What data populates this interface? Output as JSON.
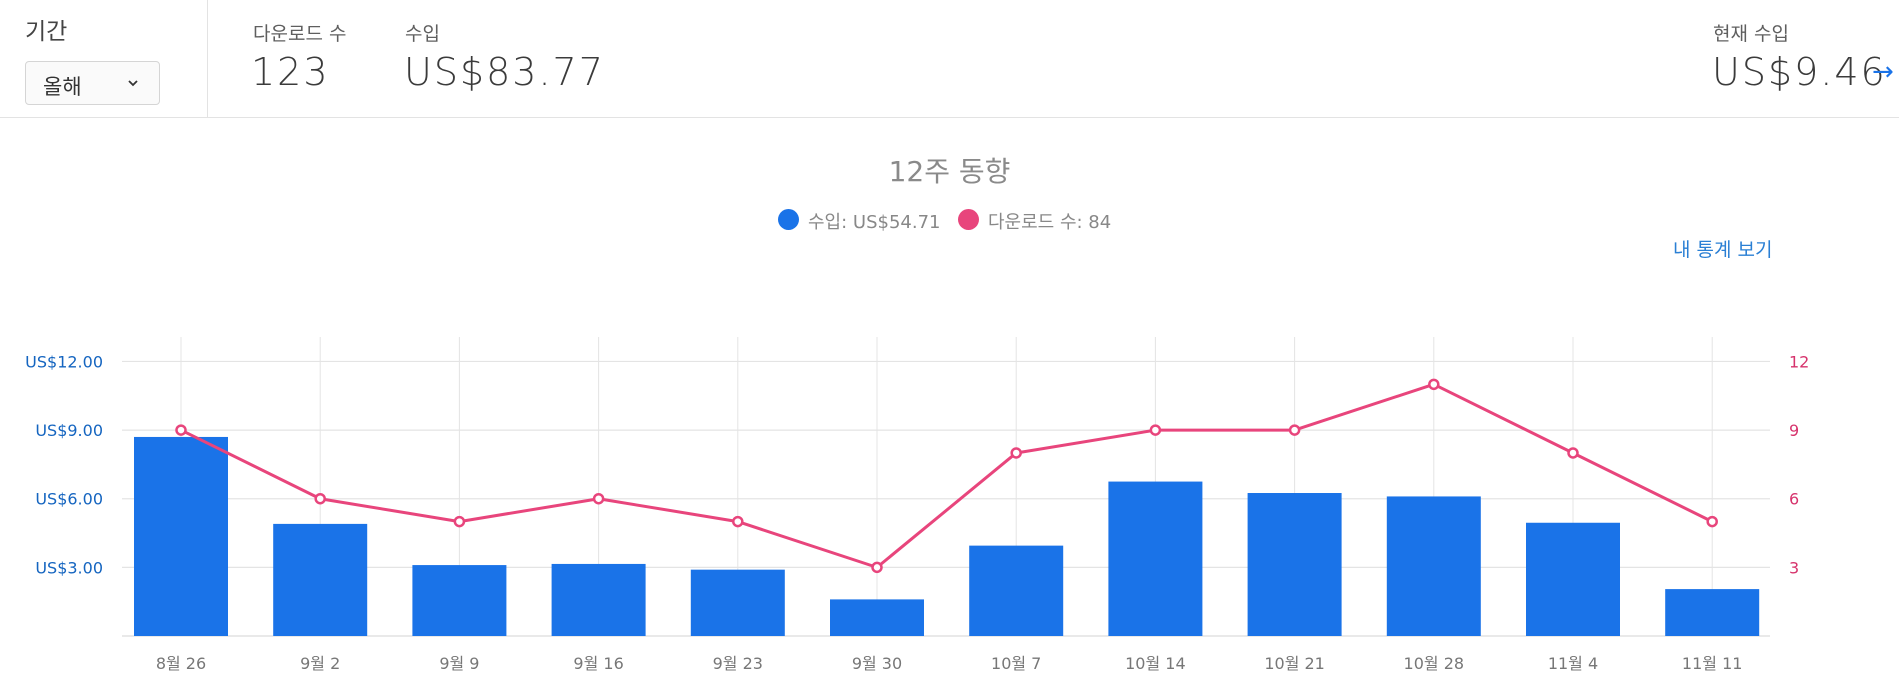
{
  "header": {
    "period_label": "기간",
    "period_value": "올해",
    "downloads_label": "다운로드 수",
    "downloads_value": "123",
    "revenue_label": "수입",
    "revenue_value": "US$83.77",
    "current_revenue_label": "현재 수입",
    "current_revenue_value": "US$9.46",
    "arrow_icon": "arrow-right-icon"
  },
  "chart": {
    "title": "12주 동향",
    "legend": {
      "revenue": "수입: US$54.71",
      "downloads": "다운로드 수: 84"
    },
    "stats_link": "내 통계 보기"
  },
  "colors": {
    "revenue": "#1a73e8",
    "downloads": "#e8457c",
    "left_axis_text": "#1565c0",
    "right_axis_text": "#d6336c"
  },
  "chart_data": {
    "type": "bar",
    "title": "12주 동향",
    "categories": [
      "8월 26",
      "9월 2",
      "9월 9",
      "9월 16",
      "9월 23",
      "9월 30",
      "10월 7",
      "10월 14",
      "10월 21",
      "10월 28",
      "11월 4",
      "11월 11"
    ],
    "series": [
      {
        "name": "수입",
        "type": "bar",
        "axis": "left",
        "values": [
          8.7,
          4.9,
          3.1,
          3.15,
          2.9,
          1.6,
          3.95,
          6.75,
          6.25,
          6.1,
          4.95,
          2.05
        ]
      },
      {
        "name": "다운로드 수",
        "type": "line",
        "axis": "right",
        "values": [
          9,
          6,
          5,
          6,
          5,
          3,
          8,
          9,
          9,
          11,
          8,
          5
        ]
      }
    ],
    "y_left": {
      "ticks": [
        3,
        6,
        9,
        12
      ],
      "tick_labels": [
        "US$3.00",
        "US$6.00",
        "US$9.00",
        "US$12.00"
      ],
      "ylim": [
        0,
        13.2
      ]
    },
    "y_right": {
      "ticks": [
        3,
        6,
        9,
        12
      ],
      "tick_labels": [
        "3",
        "6",
        "9",
        "12"
      ],
      "ylim": [
        0,
        13.2
      ]
    },
    "grid": true,
    "legend_position": "top-center"
  }
}
